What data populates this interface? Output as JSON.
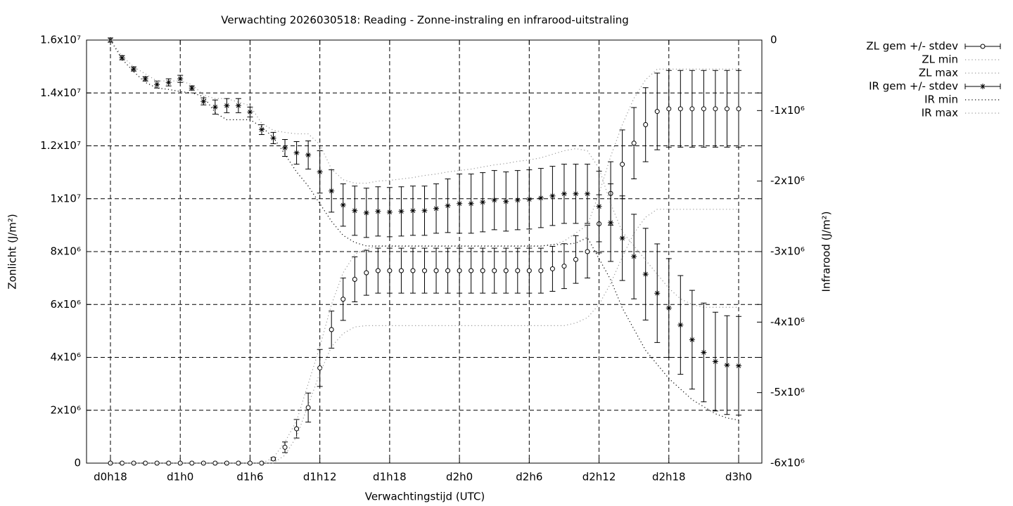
{
  "chart_data": {
    "type": "errorbar",
    "title": "Verwachting 2026030518: Reading - Zonne-instraling en infrarood-uitstraling",
    "xlabel": "Verwachtingstijd (UTC)",
    "ylabel": "Zonlicht (J/m²)",
    "y2label": "Infrarood (J/m²)",
    "categories": [
      "d0h18",
      null,
      null,
      null,
      null,
      null,
      "d1h0",
      null,
      null,
      null,
      null,
      null,
      "d1h6",
      null,
      null,
      null,
      null,
      null,
      "d1h12",
      null,
      null,
      null,
      null,
      null,
      "d1h18",
      null,
      null,
      null,
      null,
      null,
      "d2h0",
      null,
      null,
      null,
      null,
      null,
      "d2h6",
      null,
      null,
      null,
      null,
      null,
      "d2h12",
      null,
      null,
      null,
      null,
      null,
      "d2h18",
      null,
      null,
      null,
      null,
      null,
      "d3h0"
    ],
    "ylim": [
      0,
      16000000
    ],
    "yticks": [
      0,
      {
        "value": 2000000,
        "label": "2x10⁶"
      },
      {
        "value": 4000000,
        "label": "4x10⁶"
      },
      {
        "value": 6000000,
        "label": "6x10⁶"
      },
      {
        "value": 8000000,
        "label": "8x10⁶"
      },
      {
        "value": 10000000,
        "label": "1x10⁷"
      },
      {
        "value": 12000000,
        "label": "1.2x10⁷"
      },
      {
        "value": 14000000,
        "label": "1.4x10⁷"
      },
      {
        "value": 16000000,
        "label": "1.6x10⁷"
      }
    ],
    "y2lim": [
      -6000000,
      0
    ],
    "y2ticks": [
      0,
      {
        "value": -1000000,
        "label": "-1x10⁶"
      },
      {
        "value": -2000000,
        "label": "-2x10⁶"
      },
      {
        "value": -3000000,
        "label": "-3x10⁶"
      },
      {
        "value": -4000000,
        "label": "-4x10⁶"
      },
      {
        "value": -5000000,
        "label": "-5x10⁶"
      },
      {
        "value": -6000000,
        "label": "-6x10⁶"
      }
    ],
    "grid": true,
    "legend": "outside-right",
    "series": [
      {
        "name": "ZL gem +/- stdev",
        "color": "#000000",
        "marker": "circle",
        "values": [
          0,
          0,
          0,
          0,
          0,
          0,
          0,
          0,
          0,
          0,
          0,
          0,
          0,
          0,
          160000,
          600000,
          1300000,
          2100000,
          3600000,
          5050000,
          6200000,
          6950000,
          7200000,
          7280000,
          7280000,
          7280000,
          7280000,
          7280000,
          7280000,
          7280000,
          7280000,
          7280000,
          7280000,
          7280000,
          7280000,
          7280000,
          7280000,
          7280000,
          7350000,
          7450000,
          7700000,
          8000000,
          9050000,
          10200000,
          11300000,
          12100000,
          12800000,
          13300000,
          13400000,
          13400000,
          13400000,
          13400000,
          13400000,
          13400000,
          13400000
        ],
        "errors": [
          0,
          0,
          0,
          0,
          0,
          0,
          0,
          0,
          0,
          0,
          0,
          0,
          0,
          0,
          50000,
          200000,
          350000,
          550000,
          700000,
          700000,
          800000,
          850000,
          850000,
          850000,
          850000,
          850000,
          850000,
          850000,
          850000,
          850000,
          850000,
          850000,
          850000,
          850000,
          850000,
          850000,
          850000,
          850000,
          850000,
          850000,
          900000,
          1000000,
          1100000,
          1200000,
          1300000,
          1350000,
          1400000,
          1450000,
          1450000,
          1450000,
          1450000,
          1450000,
          1450000,
          1450000,
          1450000
        ]
      },
      {
        "name": "ZL min",
        "color": "#999999",
        "values": [
          0,
          0,
          0,
          0,
          0,
          0,
          0,
          0,
          0,
          0,
          0,
          0,
          0,
          0,
          0,
          300000,
          1000000,
          2200000,
          3400000,
          4400000,
          4900000,
          5150000,
          5200000,
          5200000,
          5200000,
          5200000,
          5200000,
          5200000,
          5200000,
          5200000,
          5200000,
          5200000,
          5200000,
          5200000,
          5200000,
          5200000,
          5200000,
          5200000,
          5200000,
          5200000,
          5300000,
          5500000,
          6000000,
          6800000,
          7800000,
          8700000,
          9300000,
          9600000,
          9600000,
          9600000,
          9600000,
          9600000,
          9600000,
          9600000,
          9600000
        ]
      },
      {
        "name": "ZL max",
        "color": "#999999",
        "values": [
          0,
          0,
          0,
          0,
          0,
          0,
          0,
          0,
          0,
          0,
          0,
          0,
          0,
          0,
          200000,
          800000,
          1600000,
          3000000,
          4400000,
          6000000,
          7200000,
          7900000,
          8100000,
          8200000,
          8200000,
          8200000,
          8200000,
          8200000,
          8200000,
          8200000,
          8200000,
          8200000,
          8200000,
          8200000,
          8200000,
          8200000,
          8200000,
          8200000,
          8250000,
          8400000,
          8700000,
          9000000,
          10200000,
          11600000,
          12800000,
          13800000,
          14500000,
          14900000,
          14900000,
          14900000,
          14900000,
          14900000,
          14900000,
          14900000,
          14900000
        ]
      },
      {
        "name": "IR gem +/- stdev",
        "color": "#000000",
        "marker": "asterisk",
        "axis": "y2",
        "values": [
          0,
          -250000,
          -410000,
          -550000,
          -630000,
          -600000,
          -550000,
          -680000,
          -870000,
          -950000,
          -930000,
          -930000,
          -1020000,
          -1270000,
          -1390000,
          -1530000,
          -1600000,
          -1630000,
          -1870000,
          -2140000,
          -2340000,
          -2420000,
          -2450000,
          -2430000,
          -2440000,
          -2430000,
          -2420000,
          -2420000,
          -2390000,
          -2350000,
          -2320000,
          -2320000,
          -2300000,
          -2270000,
          -2290000,
          -2270000,
          -2260000,
          -2240000,
          -2210000,
          -2180000,
          -2180000,
          -2180000,
          -2360000,
          -2590000,
          -2810000,
          -3070000,
          -3320000,
          -3590000,
          -3800000,
          -4040000,
          -4250000,
          -4430000,
          -4560000,
          -4610000,
          -4620000
        ],
        "errors": [
          30000,
          30000,
          30000,
          30000,
          50000,
          50000,
          50000,
          30000,
          50000,
          100000,
          100000,
          100000,
          70000,
          70000,
          80000,
          120000,
          160000,
          200000,
          300000,
          300000,
          300000,
          350000,
          350000,
          350000,
          350000,
          350000,
          350000,
          350000,
          350000,
          380000,
          420000,
          420000,
          420000,
          420000,
          420000,
          420000,
          420000,
          420000,
          420000,
          420000,
          420000,
          420000,
          500000,
          550000,
          600000,
          600000,
          650000,
          700000,
          700000,
          700000,
          700000,
          700000,
          700000,
          700000,
          700000
        ]
      },
      {
        "name": "IR min",
        "color": "#000000",
        "axis": "y2",
        "values": [
          0,
          -270000,
          -450000,
          -600000,
          -680000,
          -700000,
          -730000,
          -750000,
          -800000,
          -1030000,
          -1130000,
          -1130000,
          -1130000,
          -1230000,
          -1380000,
          -1620000,
          -1870000,
          -2070000,
          -2320000,
          -2570000,
          -2770000,
          -2870000,
          -2920000,
          -2920000,
          -2920000,
          -2920000,
          -2920000,
          -2920000,
          -2920000,
          -2920000,
          -2920000,
          -2920000,
          -2920000,
          -2920000,
          -2920000,
          -2920000,
          -2920000,
          -2920000,
          -2900000,
          -2900000,
          -2880000,
          -2800000,
          -3100000,
          -3400000,
          -3800000,
          -4100000,
          -4400000,
          -4600000,
          -4800000,
          -4950000,
          -5100000,
          -5200000,
          -5300000,
          -5360000,
          -5390000
        ]
      },
      {
        "name": "IR max",
        "color": "#999999",
        "axis": "y2",
        "values": [
          0,
          -230000,
          -380000,
          -480000,
          -580000,
          -580000,
          -580000,
          -630000,
          -780000,
          -830000,
          -830000,
          -880000,
          -930000,
          -1180000,
          -1280000,
          -1310000,
          -1330000,
          -1330000,
          -1480000,
          -1830000,
          -1980000,
          -2030000,
          -2030000,
          -2000000,
          -1990000,
          -1970000,
          -1950000,
          -1920000,
          -1900000,
          -1870000,
          -1850000,
          -1830000,
          -1800000,
          -1770000,
          -1750000,
          -1720000,
          -1700000,
          -1670000,
          -1620000,
          -1570000,
          -1540000,
          -1570000,
          -1820000,
          -2320000,
          -2720000,
          -2920000,
          -3120000,
          -3320000,
          -3520000,
          -3670000,
          -3750000,
          -3790000,
          -3790000,
          -3790000,
          -3790000
        ]
      }
    ]
  }
}
